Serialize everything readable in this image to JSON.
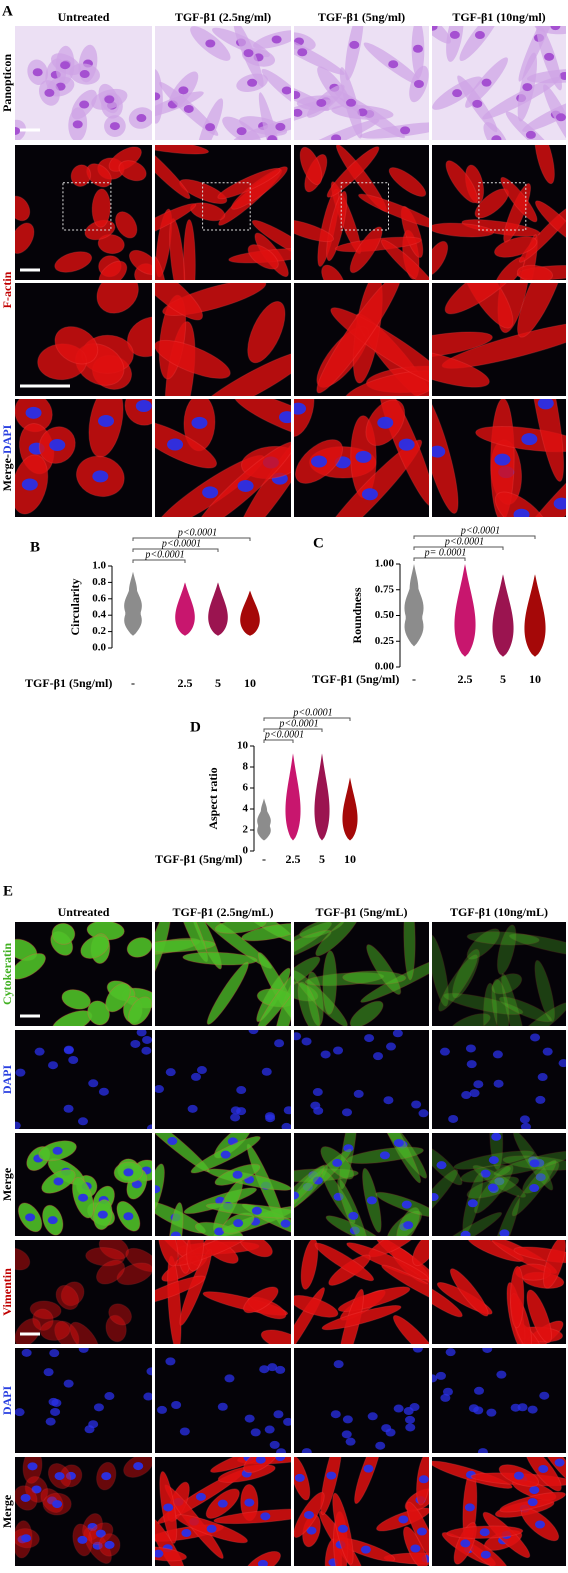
{
  "panel_a": {
    "label": "A",
    "columns": [
      "Untreated",
      "TGF-β1 (2.5ng/ml)",
      "TGF-β1 (5ng/ml)",
      "TGF-β1 (10ng/ml)"
    ],
    "rows": [
      "Panopticon",
      "F-actin"
    ],
    "merge_row": [
      "Merge-",
      "DAPI"
    ]
  },
  "chart_data": [
    {
      "type": "violin",
      "label": "B",
      "ylabel": "Circularity",
      "xlabel": "TGF-β1 (5ng/ml)",
      "categories": [
        "-",
        "2.5",
        "5",
        "10"
      ],
      "colors": [
        "#8c8c8c",
        "#c8166e",
        "#9b1450",
        "#a50808"
      ],
      "min": [
        0.15,
        0.15,
        0.15,
        0.15
      ],
      "max": [
        0.93,
        0.8,
        0.8,
        0.7
      ],
      "ylim": [
        0,
        1
      ],
      "yticks": [
        {
          "value": 0,
          "label": "0.0"
        },
        0.2,
        0.4,
        0.6,
        0.8,
        {
          "value": 1,
          "label": "1.0"
        }
      ],
      "annotations": [
        "p<0.0001",
        "p<0.0001",
        "p<0.0001"
      ]
    },
    {
      "type": "violin",
      "label": "C",
      "ylabel": "Roundness",
      "xlabel": "TGF-β1 (5ng/ml)",
      "categories": [
        "-",
        "2.5",
        "5",
        "10"
      ],
      "colors": [
        "#8c8c8c",
        "#c8166e",
        "#9b1450",
        "#a50808"
      ],
      "min": [
        0.2,
        0.1,
        0.1,
        0.1
      ],
      "max": [
        1,
        1,
        0.9,
        0.9
      ],
      "ylim": [
        0,
        1
      ],
      "yticks": [
        {
          "value": 0,
          "label": "0.00"
        },
        0.25,
        {
          "value": 0.5,
          "label": "0.50"
        },
        0.75,
        {
          "value": 1,
          "label": "1.00"
        }
      ],
      "annotations": [
        "p= 0.0001",
        "p<0.0001",
        "p<0.0001"
      ]
    },
    {
      "type": "violin",
      "label": "D",
      "ylabel": "Aspect ratio",
      "xlabel": "TGF-β1 (5ng/ml)",
      "categories": [
        "-",
        "2.5",
        "5",
        "10"
      ],
      "colors": [
        "#8c8c8c",
        "#c8166e",
        "#9b1450",
        "#a50808"
      ],
      "min": [
        1,
        1,
        1,
        1
      ],
      "max": [
        5,
        9.3,
        9.3,
        7
      ],
      "ylim": [
        0,
        10
      ],
      "yticks": [
        0,
        2,
        4,
        6,
        8,
        10
      ],
      "annotations": [
        "p<0.0001",
        "p<0.0001",
        "p<0.0001"
      ]
    }
  ],
  "panel_e": {
    "label": "E",
    "columns": [
      "Untreated",
      "TGF-β1 (2.5ng/mL)",
      "TGF-β1 (5ng/mL)",
      "TGF-β1 (10ng/mL)"
    ],
    "rows": [
      "Cytokeratin",
      "DAPI",
      "Merge",
      "Vimentin",
      "DAPI",
      "Merge"
    ]
  }
}
